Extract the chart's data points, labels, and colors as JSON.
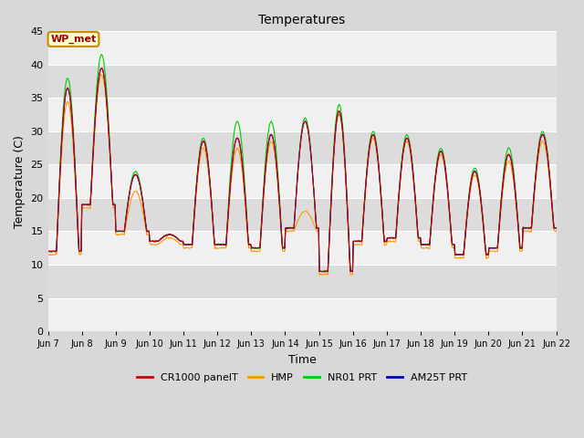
{
  "title": "Temperatures",
  "ylabel": "Temperature (C)",
  "xlabel": "Time",
  "ylim": [
    0,
    45
  ],
  "yticks": [
    0,
    5,
    10,
    15,
    20,
    25,
    30,
    35,
    40,
    45
  ],
  "outer_bg": "#d8d8d8",
  "plot_bg_light": "#f0f0f0",
  "plot_bg_dark": "#dcdcdc",
  "grid_color": "#ffffff",
  "annotation_text": "WP_met",
  "annotation_bg": "#ffffcc",
  "annotation_border": "#cc8800",
  "series_colors": {
    "CR1000 panelT": "#cc0000",
    "HMP": "#ff9900",
    "NR01 PRT": "#00cc00",
    "AM25T PRT": "#0000cc"
  },
  "x_tick_labels": [
    "Jun 7",
    "Jun 8",
    "Jun 9",
    "Jun 10",
    "Jun 11",
    "Jun 12",
    "Jun 13",
    "Jun 14",
    "Jun 15",
    "Jun 16",
    "Jun 17",
    "Jun 18",
    "Jun 19",
    "Jun 20",
    "Jun 21",
    "Jun 22"
  ],
  "n_points": 720,
  "days": 15,
  "day_peaks": [
    36.5,
    39.5,
    23.5,
    14.5,
    28.5,
    29.0,
    29.5,
    31.5,
    33.0,
    29.5,
    29.0,
    27.0,
    24.0,
    26.5,
    29.5
  ],
  "day_troughs": [
    12.0,
    19.0,
    15.0,
    13.5,
    13.0,
    13.0,
    12.5,
    15.5,
    9.0,
    13.5,
    14.0,
    13.0,
    11.5,
    12.5,
    15.5
  ],
  "nro1_extra_peaks": [
    38.0,
    41.5,
    24.0,
    14.5,
    29.0,
    31.5,
    31.5,
    32.0,
    34.0,
    30.0,
    29.5,
    27.5,
    24.5,
    27.5,
    30.0
  ],
  "hmp_peaks": [
    34.5,
    38.5,
    21.0,
    14.0,
    27.5,
    27.5,
    28.5,
    18.0,
    32.5,
    29.0,
    28.5,
    26.5,
    23.5,
    25.5,
    28.5
  ],
  "hmp_troughs": [
    11.5,
    18.5,
    14.5,
    13.0,
    12.5,
    12.5,
    12.0,
    15.0,
    8.5,
    13.0,
    13.5,
    12.5,
    11.0,
    12.0,
    15.0
  ]
}
